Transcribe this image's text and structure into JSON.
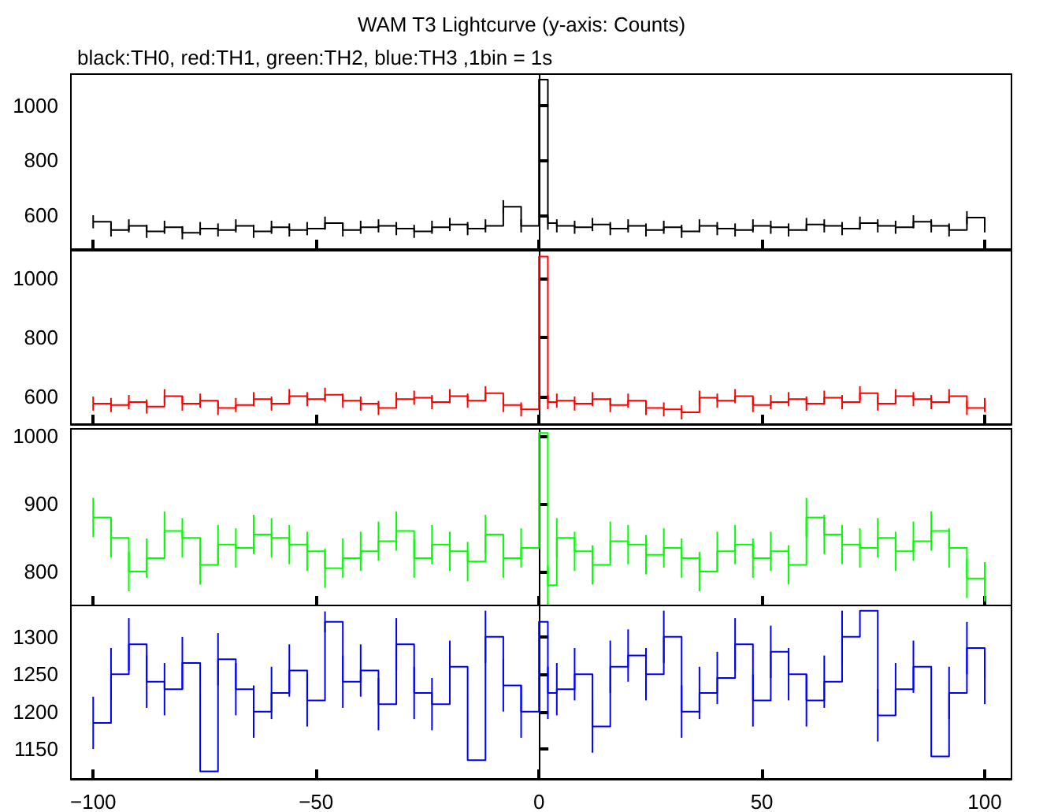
{
  "chart_data": [
    {
      "type": "step",
      "title": "WAM T3 Lightcurve (y-axis: Counts)",
      "subtitle": "black:TH0, red:TH1, green:TH2, blue:TH3 ,1bin = 1s",
      "line_style": "solid",
      "tick_labels": "y",
      "x": [
        -100,
        -96,
        -92,
        -88,
        -84,
        -80,
        -76,
        -72,
        -68,
        -64,
        -60,
        -56,
        -52,
        -48,
        -44,
        -40,
        -36,
        -32,
        -28,
        -24,
        -20,
        -16,
        -12,
        -8,
        -4,
        0,
        2,
        4,
        8,
        12,
        16,
        20,
        24,
        28,
        32,
        36,
        40,
        44,
        48,
        52,
        56,
        60,
        64,
        68,
        72,
        76,
        80,
        84,
        88,
        92,
        96,
        100
      ],
      "xlim": [
        -105,
        106
      ],
      "xticks": [
        -100,
        -50,
        0,
        50,
        100
      ],
      "ylim": [
        475,
        1115
      ],
      "yticks": [
        600,
        800,
        1000
      ],
      "series": [
        {
          "color": "#000000",
          "values": [
            575,
            545,
            560,
            540,
            555,
            535,
            550,
            545,
            560,
            540,
            555,
            545,
            550,
            570,
            545,
            555,
            560,
            550,
            540,
            555,
            565,
            550,
            560,
            630,
            560,
            1095,
            570,
            560,
            555,
            565,
            550,
            560,
            545,
            555,
            540,
            560,
            550,
            545,
            560,
            555,
            545,
            565,
            560,
            550,
            570,
            560,
            555,
            575,
            560,
            545,
            590,
            560
          ],
          "errors": [
            24,
            24,
            24,
            24,
            24,
            24,
            24,
            24,
            24,
            24,
            24,
            24,
            24,
            24,
            24,
            24,
            24,
            24,
            24,
            24,
            24,
            24,
            24,
            24,
            24,
            null,
            24,
            24,
            24,
            24,
            24,
            24,
            24,
            24,
            24,
            24,
            24,
            24,
            24,
            24,
            24,
            24,
            24,
            24,
            24,
            24,
            24,
            24,
            24,
            24,
            24,
            24
          ]
        }
      ]
    },
    {
      "type": "step",
      "line_style": "solid",
      "tick_labels": "y",
      "x": [
        -100,
        -96,
        -92,
        -88,
        -84,
        -80,
        -76,
        -72,
        -68,
        -64,
        -60,
        -56,
        -52,
        -48,
        -44,
        -40,
        -36,
        -32,
        -28,
        -24,
        -20,
        -16,
        -12,
        -8,
        -4,
        0,
        2,
        4,
        8,
        12,
        16,
        20,
        24,
        28,
        32,
        36,
        40,
        44,
        48,
        52,
        56,
        60,
        64,
        68,
        72,
        76,
        80,
        84,
        88,
        92,
        96,
        100
      ],
      "xlim": [
        -105,
        106
      ],
      "xticks": [
        -100,
        -50,
        0,
        50,
        100
      ],
      "ylim": [
        505,
        1095
      ],
      "yticks": [
        600,
        800,
        1000
      ],
      "series": [
        {
          "color": "#ff0000",
          "values": [
            575,
            570,
            580,
            565,
            600,
            575,
            585,
            560,
            570,
            590,
            575,
            600,
            590,
            605,
            585,
            575,
            560,
            590,
            595,
            580,
            600,
            585,
            610,
            570,
            555,
            1075,
            580,
            585,
            575,
            590,
            570,
            585,
            560,
            555,
            545,
            595,
            585,
            600,
            570,
            580,
            590,
            575,
            595,
            580,
            610,
            575,
            600,
            590,
            580,
            600,
            560,
            570
          ],
          "errors": [
            24,
            24,
            24,
            24,
            24,
            24,
            24,
            24,
            24,
            24,
            24,
            24,
            24,
            24,
            24,
            24,
            24,
            24,
            24,
            24,
            24,
            24,
            24,
            24,
            24,
            null,
            24,
            24,
            24,
            24,
            24,
            24,
            24,
            24,
            24,
            24,
            24,
            24,
            24,
            24,
            24,
            24,
            24,
            24,
            24,
            24,
            24,
            24,
            24,
            24,
            24,
            24
          ]
        }
      ]
    },
    {
      "type": "step",
      "line_style": "solid",
      "tick_labels": "y",
      "x": [
        -100,
        -96,
        -92,
        -88,
        -84,
        -80,
        -76,
        -72,
        -68,
        -64,
        -60,
        -56,
        -52,
        -48,
        -44,
        -40,
        -36,
        -32,
        -28,
        -24,
        -20,
        -16,
        -12,
        -8,
        -4,
        0,
        2,
        4,
        8,
        12,
        16,
        20,
        24,
        28,
        32,
        36,
        40,
        44,
        48,
        52,
        56,
        60,
        64,
        68,
        72,
        76,
        80,
        84,
        88,
        92,
        96,
        100
      ],
      "xlim": [
        -105,
        106
      ],
      "xticks": [
        -100,
        -50,
        0,
        50,
        100
      ],
      "ylim": [
        750,
        1011
      ],
      "yticks": [
        800,
        900,
        1000
      ],
      "series": [
        {
          "color": "#00ff00",
          "values": [
            880,
            850,
            800,
            820,
            860,
            850,
            810,
            840,
            835,
            855,
            850,
            840,
            830,
            805,
            820,
            830,
            845,
            860,
            820,
            840,
            830,
            815,
            855,
            820,
            835,
            1005,
            780,
            850,
            830,
            810,
            845,
            840,
            825,
            835,
            820,
            800,
            830,
            840,
            820,
            830,
            810,
            880,
            855,
            840,
            835,
            850,
            830,
            845,
            860,
            835,
            790,
            785
          ],
          "errors": [
            29,
            29,
            29,
            29,
            29,
            29,
            29,
            29,
            29,
            29,
            29,
            29,
            29,
            29,
            29,
            29,
            29,
            29,
            29,
            29,
            29,
            29,
            29,
            29,
            29,
            null,
            29,
            29,
            29,
            29,
            29,
            29,
            29,
            29,
            29,
            29,
            29,
            29,
            29,
            29,
            29,
            29,
            29,
            29,
            29,
            29,
            29,
            29,
            29,
            29,
            29,
            29
          ]
        }
      ]
    },
    {
      "type": "step",
      "line_style": "solid",
      "x": [
        -100,
        -96,
        -92,
        -88,
        -84,
        -80,
        -76,
        -72,
        -68,
        -64,
        -60,
        -56,
        -52,
        -48,
        -44,
        -40,
        -36,
        -32,
        -28,
        -24,
        -20,
        -16,
        -12,
        -8,
        -4,
        0,
        2,
        4,
        8,
        12,
        16,
        20,
        24,
        28,
        32,
        36,
        40,
        44,
        48,
        52,
        56,
        60,
        64,
        68,
        72,
        76,
        80,
        84,
        88,
        92,
        96,
        100
      ],
      "xlim": [
        -105,
        106
      ],
      "xticks": [
        -100,
        -50,
        0,
        50,
        100
      ],
      "ylim": [
        1110,
        1342
      ],
      "yticks": [
        1150,
        1200,
        1250,
        1300
      ],
      "series": [
        {
          "color": "#0000ff",
          "values": [
            1185,
            1250,
            1290,
            1240,
            1230,
            1265,
            1120,
            1270,
            1230,
            1200,
            1225,
            1255,
            1215,
            1320,
            1240,
            1255,
            1210,
            1290,
            1225,
            1210,
            1260,
            1135,
            1300,
            1235,
            1200,
            1320,
            1225,
            1230,
            1250,
            1180,
            1260,
            1275,
            1250,
            1300,
            1200,
            1225,
            1245,
            1290,
            1215,
            1280,
            1250,
            1215,
            1240,
            1300,
            1335,
            1195,
            1230,
            1260,
            1140,
            1225,
            1285,
            1245
          ],
          "errors": [
            35,
            35,
            35,
            35,
            35,
            35,
            null,
            35,
            35,
            35,
            35,
            35,
            35,
            14,
            35,
            35,
            35,
            35,
            35,
            35,
            35,
            null,
            35,
            35,
            35,
            null,
            35,
            35,
            35,
            35,
            35,
            35,
            35,
            35,
            35,
            35,
            35,
            35,
            35,
            35,
            35,
            35,
            35,
            35,
            null,
            35,
            35,
            35,
            null,
            35,
            35,
            35
          ]
        }
      ]
    }
  ]
}
